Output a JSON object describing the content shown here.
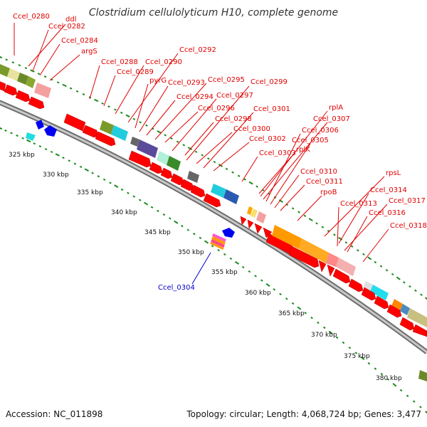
{
  "title": "Clostridium cellulolyticum H10, complete genome",
  "footer": {
    "accession": "Accession: NC_011898",
    "summary": "Topology: circular; Length: 4,068,724 bp; Genes: 3,477"
  },
  "colors": {
    "forward_label": "#e00000",
    "reverse_label": "#0000cc",
    "forward_feature": "#ff0000",
    "reverse_feature": "#0000ee",
    "tick_marks": "#1a8a1a",
    "backbone": "#9a9a9a"
  },
  "scale_labels": [
    "325 kbp",
    "330 kbp",
    "335 kbp",
    "340 kbp",
    "345 kbp",
    "350 kbp",
    "355 kbp",
    "360 kbp",
    "365 kbp",
    "370 kbp",
    "375 kbp",
    "380 kbp"
  ],
  "forward_gene_labels": [
    "Ccel_0280",
    "ddl",
    "Ccel_0282",
    "Ccel_0284",
    "argS",
    "Ccel_0288",
    "Ccel_0289",
    "Ccel_0290",
    "Ccel_0292",
    "pyrG",
    "Ccel_0293",
    "Ccel_0294",
    "Ccel_0295",
    "Ccel_0296",
    "Ccel_0297",
    "Ccel_0298",
    "Ccel_0299",
    "Ccel_0300",
    "Ccel_0301",
    "Ccel_0302",
    "Ccel_0303",
    "rplK",
    "rplA",
    "Ccel_0307",
    "Ccel_0306",
    "Ccel_0305",
    "Ccel_0310",
    "Ccel_0311",
    "rpoB",
    "rpsL",
    "Ccel_0314",
    "Ccel_0313",
    "Ccel_0317",
    "Ccel_0316",
    "Ccel_0318"
  ],
  "reverse_gene_labels": [
    "Ccel_0304"
  ]
}
